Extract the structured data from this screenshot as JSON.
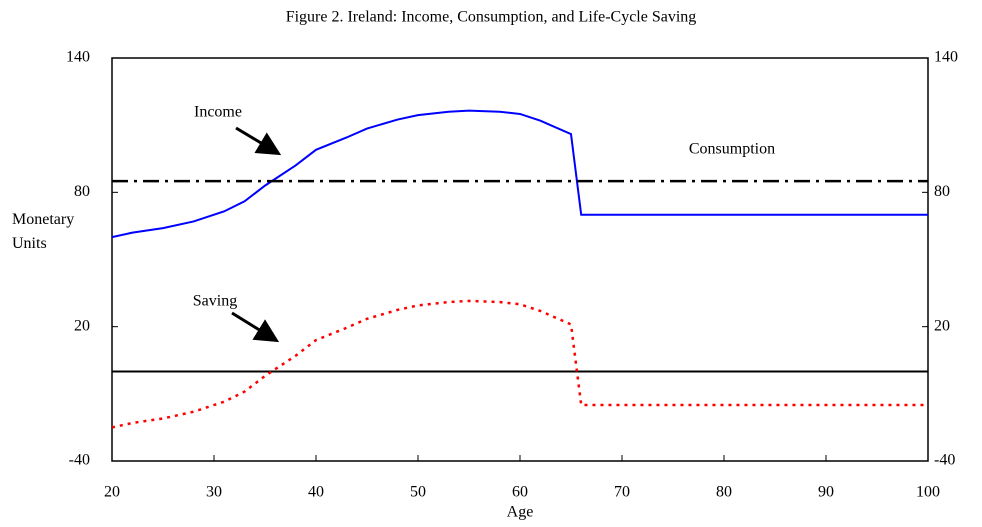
{
  "chart_data": {
    "type": "line",
    "title": "Figure 2. Ireland: Income, Consumption, and Life-Cycle Saving",
    "xlabel": "Age",
    "ylabel": "Monetary Units",
    "x": [
      20,
      22,
      25,
      28,
      31,
      33,
      35,
      38,
      40,
      43,
      45,
      48,
      50,
      53,
      55,
      58,
      60,
      62,
      63,
      65,
      66,
      70,
      80,
      90,
      100
    ],
    "series": [
      {
        "name": "Income",
        "color": "#0000ff",
        "style": "solid",
        "values": [
          60,
          62,
          64,
          67,
          71.5,
          76,
          83,
          92,
          99,
          104.5,
          108.5,
          112.5,
          114.5,
          116,
          116.5,
          116,
          115,
          112,
          110,
          106,
          70,
          70,
          70,
          70,
          70
        ]
      },
      {
        "name": "Consumption",
        "color": "#000000",
        "style": "dashdot",
        "values": [
          85,
          85,
          85,
          85,
          85,
          85,
          85,
          85,
          85,
          85,
          85,
          85,
          85,
          85,
          85,
          85,
          85,
          85,
          85,
          85,
          85,
          85,
          85,
          85,
          85
        ]
      },
      {
        "name": "Saving",
        "color": "#ff0000",
        "style": "dotted",
        "values": [
          -25,
          -23,
          -21,
          -18,
          -13.5,
          -9,
          -2,
          7,
          14,
          19.5,
          23.5,
          27.5,
          29.5,
          31,
          31.5,
          31,
          30,
          27,
          25,
          21,
          -15,
          -15,
          -15,
          -15,
          -15
        ]
      }
    ],
    "hline": 0,
    "xlim": [
      20,
      100
    ],
    "xticks": [
      20,
      30,
      40,
      50,
      60,
      70,
      80,
      90,
      100
    ],
    "ylim": [
      -40,
      140
    ],
    "yticks": [
      -40,
      20,
      80,
      140
    ],
    "y2lim": [
      -40,
      140
    ],
    "y2ticks": [
      -40,
      20,
      80,
      140
    ]
  }
}
